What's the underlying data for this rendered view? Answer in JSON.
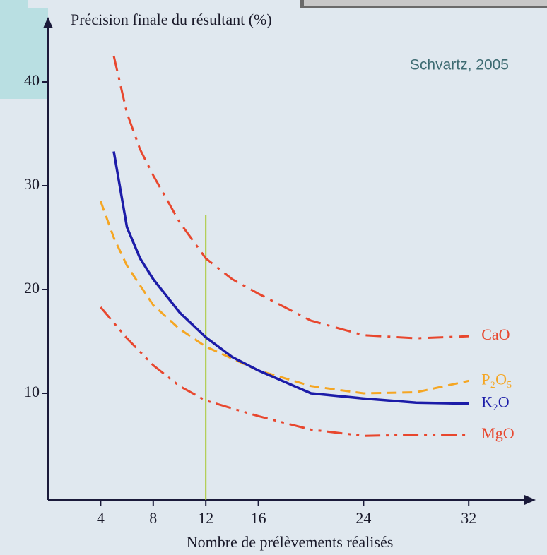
{
  "chart_data": {
    "type": "line",
    "title": "Précision finale du résultant (%)",
    "x_label": "Nombre de prélèvements réalisés",
    "annotation": "Schvartz,  2005",
    "xlim": [
      0,
      36
    ],
    "ylim": [
      0,
      45
    ],
    "xticks": [
      4,
      8,
      12,
      16,
      24,
      32
    ],
    "yticks": [
      10,
      20,
      30,
      40
    ],
    "vlines": [
      {
        "x": 12,
        "ymax": 27.2,
        "color": "#a8c832"
      }
    ],
    "series": [
      {
        "name": "CaO",
        "color": "#e8472e",
        "style": "dashdot",
        "x": [
          5,
          6,
          7,
          8,
          10,
          12,
          14,
          16,
          20,
          24,
          28,
          32
        ],
        "values": [
          42.5,
          37,
          33.5,
          31,
          26.5,
          23,
          21,
          19.6,
          17,
          15.6,
          15.3,
          15.5
        ]
      },
      {
        "name": "P₂O₅",
        "color": "#f5a623",
        "style": "dashed",
        "x": [
          4,
          5,
          6,
          8,
          10,
          12,
          16,
          20,
          24,
          28,
          32
        ],
        "values": [
          28.5,
          25,
          22.3,
          18.5,
          16.2,
          14.5,
          12.2,
          10.7,
          10,
          10.1,
          11.2
        ]
      },
      {
        "name": "K₂O",
        "color": "#1c1ca8",
        "style": "solid",
        "x": [
          5,
          6,
          7,
          8,
          10,
          12,
          14,
          16,
          20,
          24,
          28,
          32
        ],
        "values": [
          33.3,
          26,
          23,
          21,
          17.8,
          15.4,
          13.5,
          12.2,
          10,
          9.5,
          9.1,
          9
        ]
      },
      {
        "name": "MgO",
        "color": "#e8472e",
        "style": "dashdotdot",
        "x": [
          4,
          6,
          8,
          10,
          12,
          16,
          20,
          24,
          28,
          32
        ],
        "values": [
          18.3,
          15.3,
          12.7,
          10.7,
          9.3,
          7.8,
          6.5,
          5.9,
          6,
          6
        ]
      }
    ]
  }
}
